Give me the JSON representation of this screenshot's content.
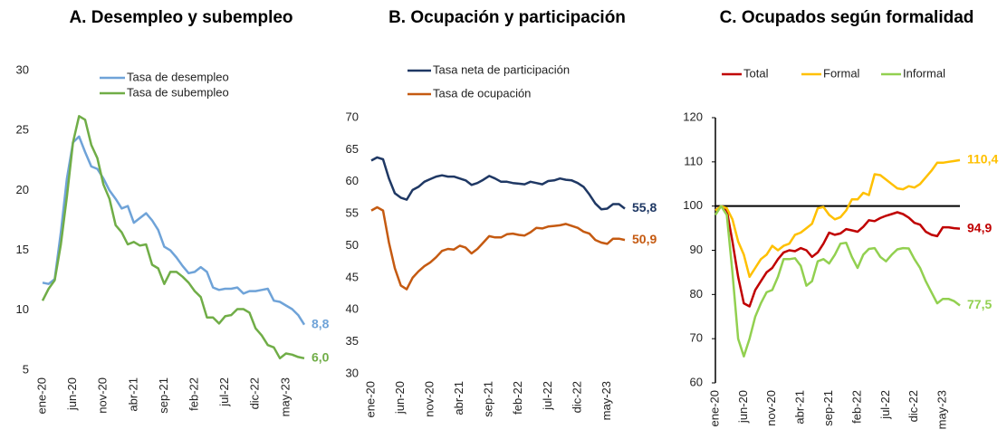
{
  "chart_data": [
    {
      "type": "line",
      "title": "A. Desempleo y subempleo",
      "categories": [
        "ene-20",
        null,
        null,
        null,
        null,
        "jun-20",
        null,
        null,
        null,
        null,
        "nov-20",
        null,
        null,
        null,
        null,
        "abr-21",
        null,
        null,
        null,
        null,
        "sep-21",
        null,
        null,
        null,
        null,
        "feb-22",
        null,
        null,
        null,
        null,
        "jul-22",
        null,
        null,
        null,
        null,
        "dic-22",
        null,
        null,
        null,
        null,
        "may-23",
        null,
        null,
        null
      ],
      "ylim": [
        5,
        30
      ],
      "yticks": [
        5,
        10,
        15,
        20,
        25,
        30
      ],
      "grid": false,
      "series": [
        {
          "name": "Tasa de desempleo",
          "color": "#6fa3d8",
          "values": [
            12.3,
            12.2,
            12.6,
            16.5,
            21,
            24,
            24.5,
            23.2,
            22,
            21.8,
            21,
            20,
            19.3,
            18.5,
            18.7,
            17.3,
            17.7,
            18.1,
            17.5,
            16.7,
            15.3,
            15,
            14.4,
            13.7,
            13.1,
            13.2,
            13.6,
            13.2,
            11.9,
            11.7,
            11.8,
            11.8,
            11.9,
            11.4,
            11.6,
            11.6,
            11.7,
            11.8,
            10.8,
            10.7,
            10.4,
            10.1,
            9.6,
            8.8
          ],
          "value_labels": [
            null,
            null,
            null,
            null,
            null,
            null,
            null,
            null,
            null,
            null,
            null,
            null,
            null,
            null,
            null,
            null,
            null,
            null,
            null,
            null,
            null,
            null,
            null,
            null,
            null,
            null,
            null,
            null,
            null,
            null,
            null,
            null,
            null,
            null,
            null,
            null,
            null,
            null,
            null,
            null,
            null,
            null,
            null,
            "8,8"
          ]
        },
        {
          "name": "Tasa de subempleo",
          "color": "#70ad47",
          "values": [
            10.8,
            11.8,
            12.5,
            15.5,
            19.5,
            24,
            26.2,
            25.9,
            23.8,
            22.7,
            20.5,
            19.3,
            17.1,
            16.5,
            15.5,
            15.7,
            15.4,
            15.5,
            13.8,
            13.5,
            12.2,
            13.2,
            13.2,
            12.8,
            12.3,
            11.6,
            11.1,
            9.4,
            9.4,
            8.9,
            9.5,
            9.6,
            10.1,
            10.1,
            9.8,
            8.5,
            7.9,
            7.1,
            6.9,
            6,
            6.4,
            6.3,
            6.1,
            6
          ],
          "value_labels": [
            null,
            null,
            null,
            null,
            null,
            null,
            null,
            null,
            null,
            null,
            null,
            null,
            null,
            null,
            null,
            null,
            null,
            null,
            null,
            null,
            null,
            null,
            null,
            null,
            null,
            null,
            null,
            null,
            null,
            null,
            null,
            null,
            null,
            null,
            null,
            null,
            null,
            null,
            null,
            null,
            null,
            null,
            null,
            "6,0"
          ]
        }
      ]
    },
    {
      "type": "line",
      "title": "B. Ocupación y participación",
      "categories": [
        "ene-20",
        null,
        null,
        null,
        null,
        "jun-20",
        null,
        null,
        null,
        null,
        "nov-20",
        null,
        null,
        null,
        null,
        "abr-21",
        null,
        null,
        null,
        null,
        "sep-21",
        null,
        null,
        null,
        null,
        "feb-22",
        null,
        null,
        null,
        null,
        "jul-22",
        null,
        null,
        null,
        null,
        "dic-22",
        null,
        null,
        null,
        null,
        "may-23",
        null,
        null,
        null
      ],
      "ylim": [
        30,
        70
      ],
      "yticks": [
        30,
        35,
        40,
        45,
        50,
        55,
        60,
        65,
        70
      ],
      "grid": false,
      "series": [
        {
          "name": "Tasa neta de participación",
          "color": "#1f3864",
          "values": [
            63.3,
            63.8,
            63.5,
            60.5,
            58.2,
            57.5,
            57.2,
            58.7,
            59.2,
            60,
            60.4,
            60.8,
            61,
            60.8,
            60.8,
            60.5,
            60.2,
            59.5,
            59.8,
            60.3,
            60.9,
            60.5,
            60,
            60,
            59.8,
            59.7,
            59.6,
            60,
            59.8,
            59.6,
            60.1,
            60.2,
            60.5,
            60.3,
            60.2,
            59.8,
            59.2,
            58,
            56.6,
            55.7,
            55.8,
            56.5,
            56.5,
            55.8
          ],
          "value_labels": [
            null,
            null,
            null,
            null,
            null,
            null,
            null,
            null,
            null,
            null,
            null,
            null,
            null,
            null,
            null,
            null,
            null,
            null,
            null,
            null,
            null,
            null,
            null,
            null,
            null,
            null,
            null,
            null,
            null,
            null,
            null,
            null,
            null,
            null,
            null,
            null,
            null,
            null,
            null,
            null,
            null,
            null,
            null,
            "55,8"
          ]
        },
        {
          "name": "Tasa de ocupación",
          "color": "#c55a11",
          "values": [
            55.5,
            56,
            55.5,
            50.5,
            46.5,
            43.8,
            43.2,
            45,
            46,
            46.8,
            47.4,
            48.2,
            49.2,
            49.5,
            49.4,
            50,
            49.7,
            48.8,
            49.5,
            50.5,
            51.5,
            51.3,
            51.3,
            51.8,
            51.9,
            51.7,
            51.6,
            52.1,
            52.8,
            52.7,
            53,
            53.1,
            53.2,
            53.4,
            53.1,
            52.8,
            52.2,
            51.9,
            50.9,
            50.5,
            50.3,
            51.1,
            51.1,
            50.9
          ],
          "value_labels": [
            null,
            null,
            null,
            null,
            null,
            null,
            null,
            null,
            null,
            null,
            null,
            null,
            null,
            null,
            null,
            null,
            null,
            null,
            null,
            null,
            null,
            null,
            null,
            null,
            null,
            null,
            null,
            null,
            null,
            null,
            null,
            null,
            null,
            null,
            null,
            null,
            null,
            null,
            null,
            null,
            null,
            null,
            null,
            "50,9"
          ]
        }
      ]
    },
    {
      "type": "line",
      "title": "C. Ocupados según formalidad",
      "categories": [
        "ene-20",
        null,
        null,
        null,
        null,
        "jun-20",
        null,
        null,
        null,
        null,
        "nov-20",
        null,
        null,
        null,
        null,
        "abr-21",
        null,
        null,
        null,
        null,
        "sep-21",
        null,
        null,
        null,
        null,
        "feb-22",
        null,
        null,
        null,
        null,
        "jul-22",
        null,
        null,
        null,
        null,
        "dic-22",
        null,
        null,
        null,
        null,
        "may-23",
        null,
        null,
        null
      ],
      "ylim": [
        60,
        120
      ],
      "yticks": [
        60,
        70,
        80,
        90,
        100,
        110,
        120
      ],
      "grid": false,
      "hline": 100,
      "series": [
        {
          "name": "Total",
          "color": "#c00000",
          "values": [
            99,
            100,
            99,
            92,
            84,
            78,
            77.3,
            81,
            83,
            85,
            86,
            88,
            89.5,
            90,
            89.8,
            90.5,
            90,
            88.5,
            89.5,
            91.5,
            94,
            93.5,
            93.8,
            94.8,
            94.5,
            94.2,
            95.3,
            96.8,
            96.6,
            97.3,
            97.8,
            98.2,
            98.6,
            98.2,
            97.4,
            96.2,
            95.8,
            94.2,
            93.5,
            93.2,
            95.2,
            95.2,
            95,
            94.9
          ],
          "value_labels": [
            null,
            null,
            null,
            null,
            null,
            null,
            null,
            null,
            null,
            null,
            null,
            null,
            null,
            null,
            null,
            null,
            null,
            null,
            null,
            null,
            null,
            null,
            null,
            null,
            null,
            null,
            null,
            null,
            null,
            null,
            null,
            null,
            null,
            null,
            null,
            null,
            null,
            null,
            null,
            null,
            null,
            null,
            null,
            "94,9"
          ]
        },
        {
          "name": "Formal",
          "color": "#ffc000",
          "values": [
            99,
            100,
            99.5,
            97,
            92,
            89,
            84,
            86,
            88,
            89,
            91,
            90,
            91,
            91.5,
            93.5,
            94,
            95,
            96,
            99.5,
            99.8,
            98,
            97,
            97.5,
            99,
            101.5,
            101.5,
            103,
            102.5,
            107.2,
            107,
            106,
            105,
            104,
            103.8,
            104.5,
            104.2,
            105,
            106.5,
            108,
            109.8,
            109.8,
            110,
            110.2,
            110.4
          ],
          "value_labels": [
            null,
            null,
            null,
            null,
            null,
            null,
            null,
            null,
            null,
            null,
            null,
            null,
            null,
            null,
            null,
            null,
            null,
            null,
            null,
            null,
            null,
            null,
            null,
            null,
            null,
            null,
            null,
            null,
            null,
            null,
            null,
            null,
            null,
            null,
            null,
            null,
            null,
            null,
            null,
            null,
            null,
            null,
            null,
            "110,4"
          ]
        },
        {
          "name": "Informal",
          "color": "#92d050",
          "values": [
            98,
            100,
            98,
            85,
            70,
            66,
            70,
            75,
            78,
            80.5,
            81,
            84,
            88,
            88,
            88.2,
            86.5,
            82,
            83,
            87.5,
            88,
            87,
            89,
            91.5,
            91.7,
            88.5,
            86,
            89,
            90.3,
            90.5,
            88.5,
            87.5,
            89,
            90.2,
            90.5,
            90.4,
            88,
            86,
            83,
            80.5,
            78,
            79,
            79,
            78.5,
            77.5
          ],
          "value_labels": [
            null,
            null,
            null,
            null,
            null,
            null,
            null,
            null,
            null,
            null,
            null,
            null,
            null,
            null,
            null,
            null,
            null,
            null,
            null,
            null,
            null,
            null,
            null,
            null,
            null,
            null,
            null,
            null,
            null,
            null,
            null,
            null,
            null,
            null,
            null,
            null,
            null,
            null,
            null,
            null,
            null,
            null,
            null,
            "77,5"
          ]
        }
      ]
    }
  ]
}
